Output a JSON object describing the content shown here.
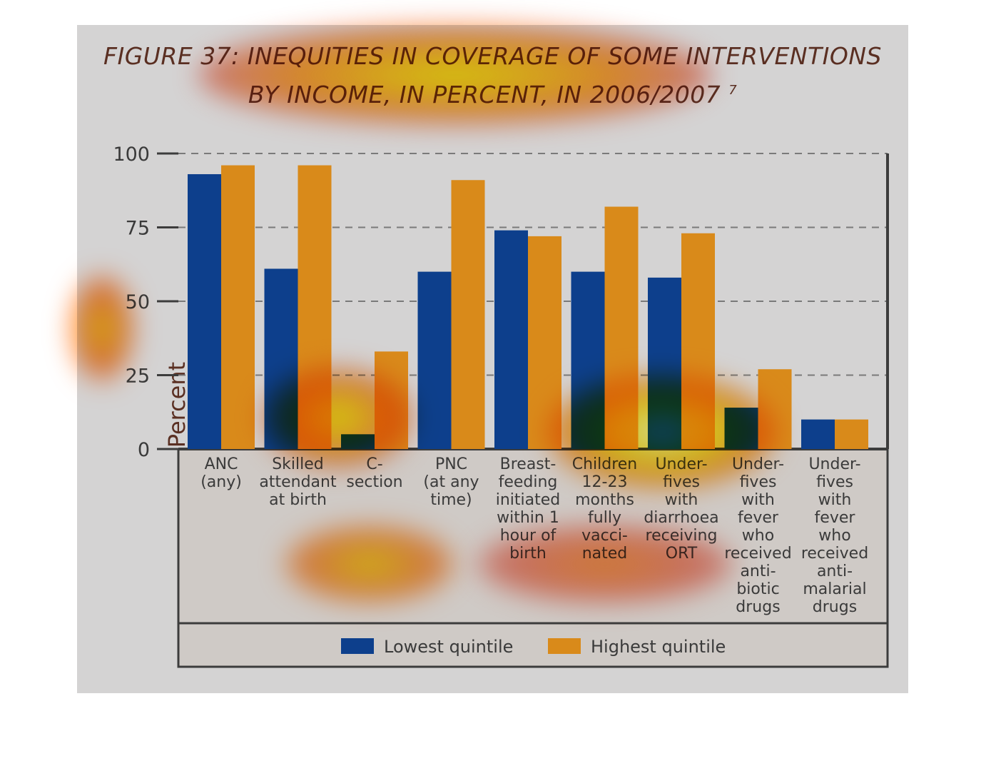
{
  "chart_data": {
    "type": "bar",
    "title_line1": "FIGURE 37: INEQUITIES IN COVERAGE OF SOME INTERVENTIONS",
    "title_line2": "BY INCOME, IN PERCENT, IN 2006/2007",
    "title_superscript": "7",
    "ylabel": "Percent",
    "xlabel": "",
    "ylim": [
      0,
      100
    ],
    "yticks": [
      0,
      25,
      50,
      75,
      100
    ],
    "grid": true,
    "legend_position": "bottom",
    "categories": [
      [
        "ANC",
        "(any)"
      ],
      [
        "Skilled",
        "attendant",
        "at birth"
      ],
      [
        "C-",
        "section"
      ],
      [
        "PNC",
        "(at any",
        "time)"
      ],
      [
        "Breast-",
        "feeding",
        "initiated",
        "within 1",
        "hour of",
        "birth"
      ],
      [
        "Children",
        "12-23",
        "months",
        "fully",
        "vacci-",
        "nated"
      ],
      [
        "Under-",
        "fives",
        "with",
        "diarrhoea",
        "receiving",
        "ORT"
      ],
      [
        "Under-",
        "fives",
        "with",
        "fever",
        "who",
        "received",
        "anti-",
        "biotic",
        "drugs"
      ],
      [
        "Under-",
        "fives",
        "with",
        "fever",
        "who",
        "received",
        "anti-",
        "malarial",
        "drugs"
      ]
    ],
    "series": [
      {
        "name": "Lowest quintile",
        "color": "#0d3f8c",
        "values": [
          93,
          61,
          5,
          60,
          74,
          60,
          58,
          14,
          10
        ]
      },
      {
        "name": "Highest quintile",
        "color": "#d98a1a",
        "values": [
          96,
          96,
          33,
          91,
          72,
          82,
          73,
          27,
          10
        ]
      }
    ]
  }
}
